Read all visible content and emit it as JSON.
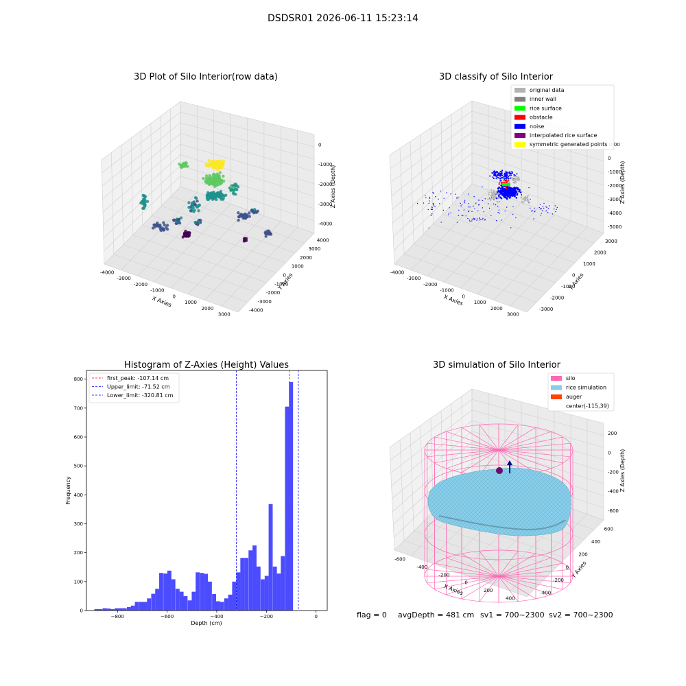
{
  "figure": {
    "title": "DSDSR01 2026-06-11 15:23:14",
    "footer": {
      "flag": "flag = 0",
      "avg_depth": "avgDepth = 481 cm",
      "sv1": "sv1 = 700~2300",
      "sv2": "sv2 = 700~2300"
    }
  },
  "chart_data": [
    {
      "type": "scatter",
      "title": "3D Plot of Silo Interior(row data)",
      "xlabel": "X Axies",
      "ylabel": "Y Axies",
      "zlabel": "Z Axies (Depth)",
      "x_ticks": [
        "-4000",
        "-3000",
        "-2000",
        "-1000",
        "0",
        "1000",
        "2000",
        "3000"
      ],
      "y_ticks": [
        "-4000",
        "-3000",
        "-2000",
        "-1000",
        "0",
        "1000",
        "2000",
        "3000",
        "4000"
      ],
      "z_ticks": [
        "0",
        "-1000",
        "-2000",
        "-3000",
        "-4000"
      ],
      "colormap": [
        "#440154",
        "#3b528b",
        "#21918c",
        "#5ec962",
        "#fde725"
      ]
    },
    {
      "type": "scatter",
      "title": "3D classify of Silo Interior",
      "xlabel": "X Axies",
      "ylabel": "Y Axies",
      "zlabel": "Z Axies (Depth)",
      "x_ticks": [
        "-4000",
        "-3000",
        "-2000",
        "-1000",
        "0",
        "1000",
        "2000",
        "3000"
      ],
      "y_ticks": [
        "-3000",
        "-2000",
        "-1000",
        "0",
        "1000",
        "2000",
        "3000"
      ],
      "z_ticks": [
        "1000",
        "0",
        "-1000",
        "-2000",
        "-3000",
        "-4000",
        "-5000"
      ],
      "legend": [
        {
          "label": "original data",
          "color": "#b4b4b4"
        },
        {
          "label": "inner wall",
          "color": "#808080"
        },
        {
          "label": "rice surface",
          "color": "#00ff00"
        },
        {
          "label": "obstacle",
          "color": "#ff0000"
        },
        {
          "label": "noise",
          "color": "#0000ff"
        },
        {
          "label": "interpolated rice surface",
          "color": "#800080"
        },
        {
          "label": "symmetric generated points",
          "color": "#ffff00"
        }
      ]
    },
    {
      "type": "bar",
      "title": "Histogram of Z-Axies (Height) Values",
      "xlabel": "Depth (cm)",
      "ylabel": "Frequency",
      "xlim": [
        -925,
        45
      ],
      "ylim": [
        0,
        830
      ],
      "x_ticks": [
        -800,
        -600,
        -400,
        -200,
        0
      ],
      "y_ticks": [
        0,
        100,
        200,
        300,
        400,
        500,
        600,
        700,
        800
      ],
      "bin_width": 16.3,
      "bar_color": "#4c4cff",
      "bins": [
        {
          "left": -893,
          "count": 5
        },
        {
          "left": -877,
          "count": 5
        },
        {
          "left": -860,
          "count": 8
        },
        {
          "left": -844,
          "count": 7
        },
        {
          "left": -828,
          "count": 5
        },
        {
          "left": -811,
          "count": 8
        },
        {
          "left": -795,
          "count": 8
        },
        {
          "left": -779,
          "count": 8
        },
        {
          "left": -762,
          "count": 12
        },
        {
          "left": -746,
          "count": 17
        },
        {
          "left": -730,
          "count": 30
        },
        {
          "left": -713,
          "count": 30
        },
        {
          "left": -697,
          "count": 30
        },
        {
          "left": -681,
          "count": 42
        },
        {
          "left": -664,
          "count": 58
        },
        {
          "left": -648,
          "count": 75
        },
        {
          "left": -632,
          "count": 130
        },
        {
          "left": -615,
          "count": 128
        },
        {
          "left": -599,
          "count": 138
        },
        {
          "left": -583,
          "count": 108
        },
        {
          "left": -566,
          "count": 75
        },
        {
          "left": -550,
          "count": 65
        },
        {
          "left": -534,
          "count": 50
        },
        {
          "left": -517,
          "count": 35
        },
        {
          "left": -501,
          "count": 65
        },
        {
          "left": -485,
          "count": 132
        },
        {
          "left": -468,
          "count": 130
        },
        {
          "left": -452,
          "count": 127
        },
        {
          "left": -436,
          "count": 100
        },
        {
          "left": -419,
          "count": 57
        },
        {
          "left": -403,
          "count": 32
        },
        {
          "left": -387,
          "count": 30
        },
        {
          "left": -370,
          "count": 42
        },
        {
          "left": -354,
          "count": 55
        },
        {
          "left": -338,
          "count": 100
        },
        {
          "left": -321,
          "count": 132
        },
        {
          "left": -305,
          "count": 182
        },
        {
          "left": -289,
          "count": 182
        },
        {
          "left": -272,
          "count": 208
        },
        {
          "left": -256,
          "count": 225
        },
        {
          "left": -240,
          "count": 152
        },
        {
          "left": -223,
          "count": 108
        },
        {
          "left": -207,
          "count": 120
        },
        {
          "left": -191,
          "count": 368
        },
        {
          "left": -174,
          "count": 152
        },
        {
          "left": -158,
          "count": 128
        },
        {
          "left": -142,
          "count": 188
        },
        {
          "left": -125,
          "count": 705
        },
        {
          "left": -109,
          "count": 790
        }
      ],
      "vlines": [
        {
          "label": "first_peak: -107.14 cm",
          "x": -107.14,
          "color": "#ff0000"
        },
        {
          "label": "Upper_limit: -71.52 cm",
          "x": -71.52,
          "color": "#0000ff"
        },
        {
          "label": "Lower_limit: -320.81 cm",
          "x": -320.81,
          "color": "#0000ff"
        }
      ]
    },
    {
      "type": "surface",
      "title": "3D simulation of Silo Interior",
      "xlabel": "X Axies",
      "ylabel": "Y Axies",
      "zlabel": "Z Axies (Depth)",
      "x_ticks": [
        "-600",
        "-400",
        "-200",
        "0",
        "200",
        "400"
      ],
      "y_ticks": [
        "-400",
        "-200",
        "0",
        "200",
        "400",
        "600"
      ],
      "z_ticks": [
        "200",
        "0",
        "-200",
        "-400",
        "-600"
      ],
      "legend": [
        {
          "label": "silo",
          "color": "#ff69b4"
        },
        {
          "label": "rice simulation",
          "color": "#87ceeb"
        },
        {
          "label": "auger",
          "color": "#ff4500"
        },
        {
          "label": "center(-115,39)",
          "color": ""
        }
      ]
    }
  ]
}
